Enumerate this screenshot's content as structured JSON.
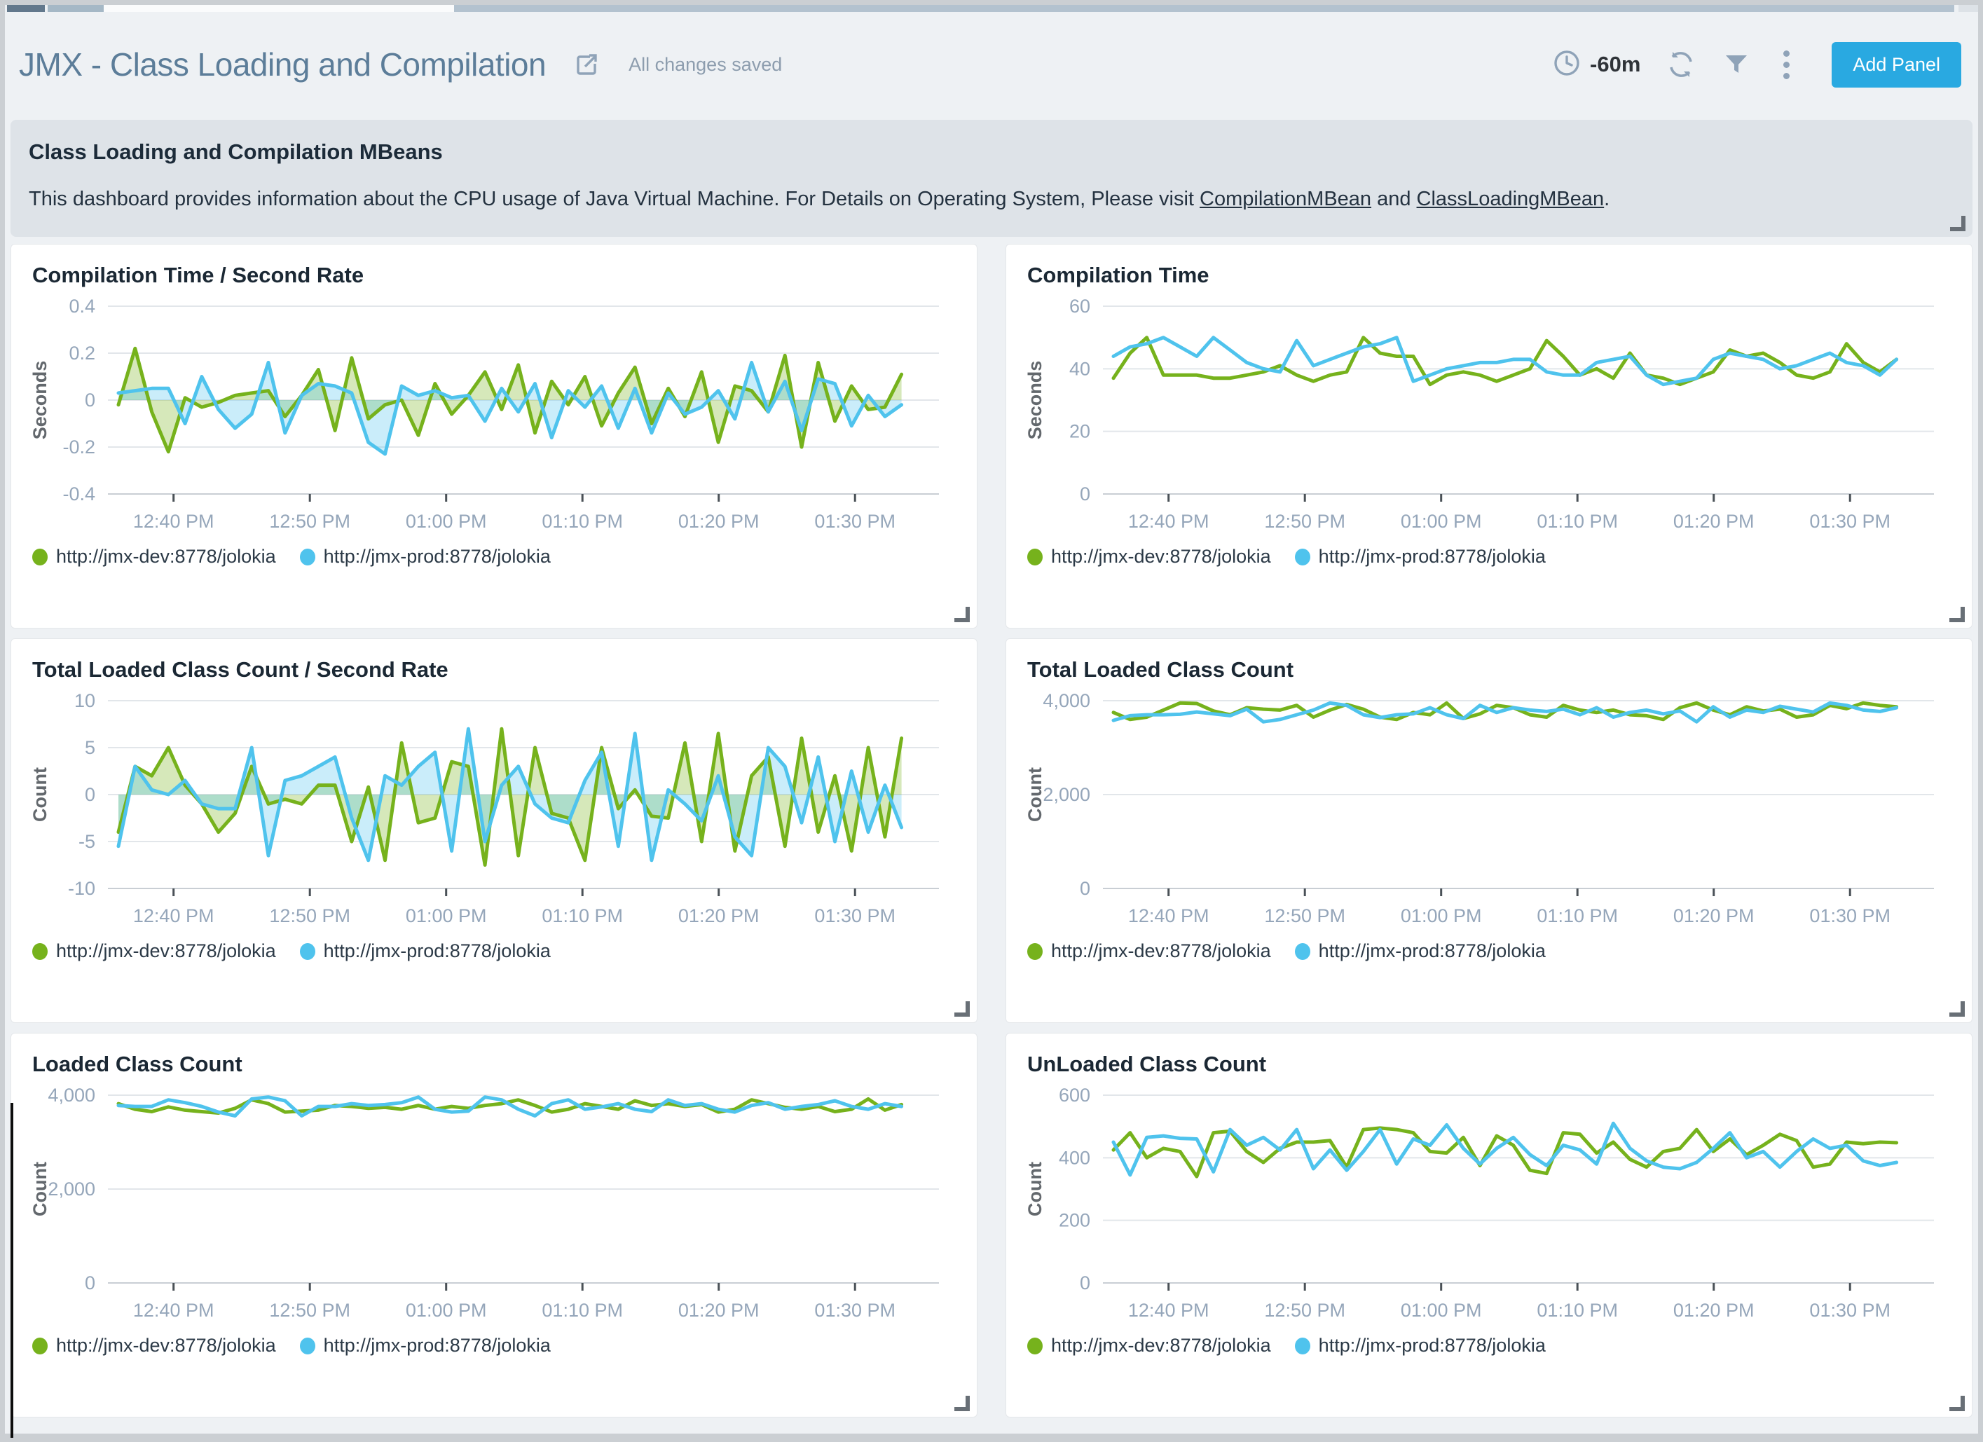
{
  "header": {
    "title": "JMX - Class Loading and Compilation",
    "saved_status": "All changes saved",
    "time_range": "-60m",
    "add_panel_label": "Add Panel"
  },
  "description": {
    "heading": "Class Loading and Compilation MBeans",
    "body_prefix": "This dashboard provides information about the CPU usage of Java Virtual Machine. For Details on Operating System, Please visit ",
    "link1": "CompilationMBean",
    "body_middle": " and ",
    "link2": "ClassLoadingMBean",
    "body_suffix": "."
  },
  "colors": {
    "dev_series": "#76B21C",
    "prod_series": "#4FC3ED",
    "add_panel_button": "#29A9E1",
    "grid_line": "#E2E6EA",
    "axis_text": "#95A6BA"
  },
  "chart_data": [
    {
      "type": "area",
      "title": "Compilation Time / Second Rate",
      "ylabel": "Seconds",
      "ylim": [
        -0.4,
        0.4
      ],
      "ytick_values": [
        0.4,
        0.2,
        0,
        -0.2,
        -0.4
      ],
      "ytick_labels": [
        "0.4",
        "0.2",
        "0",
        "-0.2",
        "-0.4"
      ],
      "fill": true,
      "grid": true,
      "legend_position": "bottom",
      "x_ticks": [
        "12:40 PM",
        "12:50 PM",
        "01:00 PM",
        "01:10 PM",
        "01:20 PM",
        "01:30 PM"
      ],
      "series": [
        {
          "name": "http://jmx-dev:8778/jolokia",
          "color": "#76B21C",
          "values": [
            -0.02,
            0.22,
            -0.05,
            -0.22,
            0.01,
            -0.03,
            -0.01,
            0.02,
            0.03,
            0.04,
            -0.07,
            0.02,
            0.13,
            -0.13,
            0.18,
            -0.08,
            -0.02,
            0.0,
            -0.15,
            0.07,
            -0.06,
            0.02,
            0.12,
            -0.04,
            0.15,
            -0.14,
            0.08,
            -0.02,
            0.1,
            -0.11,
            0.03,
            0.14,
            -0.1,
            0.05,
            -0.07,
            0.12,
            -0.18,
            0.06,
            0.04,
            -0.05,
            0.19,
            -0.2,
            0.16,
            -0.09,
            0.06,
            -0.04,
            -0.03,
            0.11
          ]
        },
        {
          "name": "http://jmx-prod:8778/jolokia",
          "color": "#4FC3ED",
          "values": [
            0.03,
            0.04,
            0.05,
            0.05,
            -0.1,
            0.1,
            -0.04,
            -0.12,
            -0.06,
            0.16,
            -0.14,
            0.02,
            0.07,
            0.06,
            0.03,
            -0.18,
            -0.23,
            0.06,
            0.02,
            0.04,
            0.01,
            0.02,
            -0.09,
            0.05,
            -0.05,
            0.07,
            -0.16,
            0.04,
            -0.03,
            0.06,
            -0.12,
            0.05,
            -0.14,
            0.03,
            -0.06,
            -0.03,
            0.04,
            -0.08,
            0.16,
            -0.05,
            0.08,
            -0.13,
            0.09,
            0.07,
            -0.11,
            0.02,
            -0.07,
            -0.02
          ]
        }
      ]
    },
    {
      "type": "line",
      "title": "Compilation Time",
      "ylabel": "Seconds",
      "ylim": [
        0,
        60
      ],
      "ytick_values": [
        60,
        40,
        20,
        0
      ],
      "ytick_labels": [
        "60",
        "40",
        "20",
        "0"
      ],
      "fill": false,
      "grid": true,
      "legend_position": "bottom",
      "x_ticks": [
        "12:40 PM",
        "12:50 PM",
        "01:00 PM",
        "01:10 PM",
        "01:20 PM",
        "01:30 PM"
      ],
      "series": [
        {
          "name": "http://jmx-dev:8778/jolokia",
          "color": "#76B21C",
          "values": [
            37,
            45,
            50,
            38,
            38,
            38,
            37,
            37,
            38,
            39,
            41,
            38,
            36,
            38,
            39,
            50,
            45,
            44,
            44,
            35,
            38,
            39,
            38,
            36,
            38,
            40,
            49,
            44,
            38,
            40,
            37,
            45,
            38,
            37,
            35,
            37,
            39,
            46,
            44,
            45,
            42,
            38,
            37,
            39,
            48,
            42,
            39,
            43
          ]
        },
        {
          "name": "http://jmx-prod:8778/jolokia",
          "color": "#4FC3ED",
          "values": [
            44,
            47,
            48,
            50,
            47,
            44,
            50,
            46,
            42,
            40,
            39,
            49,
            41,
            43,
            45,
            47,
            48,
            50,
            36,
            38,
            40,
            41,
            42,
            42,
            43,
            43,
            39,
            38,
            38,
            42,
            43,
            44,
            38,
            35,
            36,
            37,
            43,
            45,
            44,
            43,
            40,
            41,
            43,
            45,
            42,
            41,
            38,
            43
          ]
        }
      ]
    },
    {
      "type": "area",
      "title": "Total Loaded Class Count / Second Rate",
      "ylabel": "Count",
      "ylim": [
        -10,
        10
      ],
      "ytick_values": [
        10,
        5,
        0,
        -5,
        -10
      ],
      "ytick_labels": [
        "10",
        "5",
        "0",
        "-5",
        "-10"
      ],
      "fill": true,
      "grid": true,
      "legend_position": "bottom",
      "x_ticks": [
        "12:40 PM",
        "12:50 PM",
        "01:00 PM",
        "01:10 PM",
        "01:20 PM",
        "01:30 PM"
      ],
      "series": [
        {
          "name": "http://jmx-dev:8778/jolokia",
          "color": "#76B21C",
          "values": [
            -4,
            3,
            2,
            5,
            1,
            -1,
            -4,
            -2,
            3,
            -1,
            -0.5,
            -1,
            1,
            1,
            -5,
            0.8,
            -7,
            5.5,
            -3,
            -2.5,
            3.5,
            3,
            -7.5,
            7,
            -6.5,
            5,
            -2,
            -2.5,
            -7,
            5,
            -1.5,
            0.5,
            -2.3,
            -2.5,
            5.5,
            -5,
            6.5,
            -6,
            2,
            4,
            -5.5,
            6,
            -4,
            2,
            -6,
            5,
            -4.5,
            6
          ]
        },
        {
          "name": "http://jmx-prod:8778/jolokia",
          "color": "#4FC3ED",
          "values": [
            -5.5,
            3,
            0.5,
            0,
            1.5,
            -1,
            -1.5,
            -1.5,
            5,
            -6.5,
            1.5,
            2,
            3,
            4,
            -2.5,
            -7,
            2,
            1,
            3,
            4.5,
            -6,
            7,
            -5,
            1,
            3,
            -1,
            -2.5,
            -3,
            1.5,
            4.5,
            -5.5,
            6.5,
            -7,
            0.5,
            -1,
            -2.8,
            2,
            -4.5,
            -6.5,
            5,
            3,
            -3,
            4,
            -5,
            2.5,
            -4,
            1,
            -3.5
          ]
        }
      ]
    },
    {
      "type": "line",
      "title": "Total Loaded Class Count",
      "ylabel": "Count",
      "ylim": [
        0,
        4000
      ],
      "ytick_values": [
        4000,
        2000,
        0
      ],
      "ytick_labels": [
        "4,000",
        "2,000",
        "0"
      ],
      "fill": false,
      "grid": true,
      "legend_position": "bottom",
      "x_ticks": [
        "12:40 PM",
        "12:50 PM",
        "01:00 PM",
        "01:10 PM",
        "01:20 PM",
        "01:30 PM"
      ],
      "series": [
        {
          "name": "http://jmx-dev:8778/jolokia",
          "color": "#76B21C",
          "values": [
            3750,
            3600,
            3650,
            3800,
            3950,
            3940,
            3780,
            3700,
            3850,
            3820,
            3800,
            3900,
            3650,
            3800,
            3920,
            3820,
            3650,
            3600,
            3750,
            3700,
            3950,
            3620,
            3720,
            3900,
            3850,
            3700,
            3650,
            3900,
            3800,
            3750,
            3800,
            3700,
            3680,
            3600,
            3850,
            3950,
            3800,
            3700,
            3870,
            3780,
            3820,
            3650,
            3700,
            3900,
            3830,
            3950,
            3900,
            3870
          ]
        },
        {
          "name": "http://jmx-prod:8778/jolokia",
          "color": "#4FC3ED",
          "values": [
            3580,
            3680,
            3700,
            3700,
            3710,
            3760,
            3720,
            3680,
            3820,
            3550,
            3600,
            3700,
            3800,
            3950,
            3900,
            3700,
            3640,
            3700,
            3720,
            3850,
            3700,
            3620,
            3900,
            3750,
            3850,
            3800,
            3770,
            3820,
            3700,
            3850,
            3650,
            3750,
            3800,
            3720,
            3780,
            3550,
            3870,
            3650,
            3800,
            3750,
            3880,
            3820,
            3760,
            3950,
            3900,
            3800,
            3770,
            3850
          ]
        }
      ]
    },
    {
      "type": "line",
      "title": "Loaded Class Count",
      "ylabel": "Count",
      "ylim": [
        0,
        4000
      ],
      "ytick_values": [
        4000,
        2000,
        0
      ],
      "ytick_labels": [
        "4,000",
        "2,000",
        "0"
      ],
      "fill": false,
      "grid": true,
      "legend_position": "bottom",
      "x_ticks": [
        "12:40 PM",
        "12:50 PM",
        "01:00 PM",
        "01:10 PM",
        "01:20 PM",
        "01:30 PM"
      ],
      "series": [
        {
          "name": "http://jmx-dev:8778/jolokia",
          "color": "#76B21C",
          "values": [
            3820,
            3700,
            3650,
            3750,
            3680,
            3650,
            3620,
            3720,
            3900,
            3820,
            3640,
            3660,
            3680,
            3780,
            3760,
            3720,
            3740,
            3700,
            3780,
            3700,
            3760,
            3720,
            3780,
            3820,
            3900,
            3780,
            3640,
            3700,
            3820,
            3760,
            3700,
            3880,
            3780,
            3820,
            3760,
            3800,
            3640,
            3700,
            3900,
            3820,
            3740,
            3700,
            3760,
            3650,
            3700,
            3920,
            3680,
            3800
          ]
        },
        {
          "name": "http://jmx-prod:8778/jolokia",
          "color": "#4FC3ED",
          "values": [
            3780,
            3760,
            3760,
            3900,
            3840,
            3760,
            3640,
            3560,
            3920,
            3960,
            3880,
            3560,
            3760,
            3760,
            3820,
            3780,
            3800,
            3840,
            3960,
            3700,
            3640,
            3660,
            3960,
            3900,
            3700,
            3560,
            3820,
            3900,
            3700,
            3750,
            3820,
            3700,
            3650,
            3900,
            3780,
            3820,
            3700,
            3640,
            3780,
            3840,
            3700,
            3760,
            3800,
            3880,
            3760,
            3700,
            3820,
            3760
          ]
        }
      ]
    },
    {
      "type": "line",
      "title": "UnLoaded Class Count",
      "ylabel": "Count",
      "ylim": [
        0,
        600
      ],
      "ytick_values": [
        600,
        400,
        200,
        0
      ],
      "ytick_labels": [
        "600",
        "400",
        "200",
        "0"
      ],
      "fill": false,
      "grid": true,
      "legend_position": "bottom",
      "x_ticks": [
        "12:40 PM",
        "12:50 PM",
        "01:00 PM",
        "01:10 PM",
        "01:20 PM",
        "01:30 PM"
      ],
      "series": [
        {
          "name": "http://jmx-dev:8778/jolokia",
          "color": "#76B21C",
          "values": [
            425,
            480,
            400,
            430,
            420,
            340,
            480,
            485,
            420,
            385,
            430,
            450,
            450,
            455,
            370,
            490,
            495,
            490,
            480,
            420,
            415,
            465,
            375,
            470,
            440,
            360,
            350,
            480,
            475,
            415,
            450,
            395,
            370,
            420,
            430,
            490,
            420,
            460,
            410,
            440,
            475,
            455,
            370,
            380,
            450,
            445,
            450,
            448
          ]
        },
        {
          "name": "http://jmx-prod:8778/jolokia",
          "color": "#4FC3ED",
          "values": [
            450,
            345,
            465,
            470,
            462,
            460,
            355,
            490,
            440,
            465,
            425,
            490,
            365,
            425,
            360,
            420,
            490,
            380,
            460,
            440,
            505,
            430,
            380,
            430,
            465,
            410,
            375,
            440,
            425,
            380,
            510,
            430,
            390,
            370,
            365,
            385,
            430,
            480,
            400,
            420,
            370,
            420,
            460,
            430,
            440,
            390,
            375,
            385
          ]
        }
      ]
    }
  ]
}
